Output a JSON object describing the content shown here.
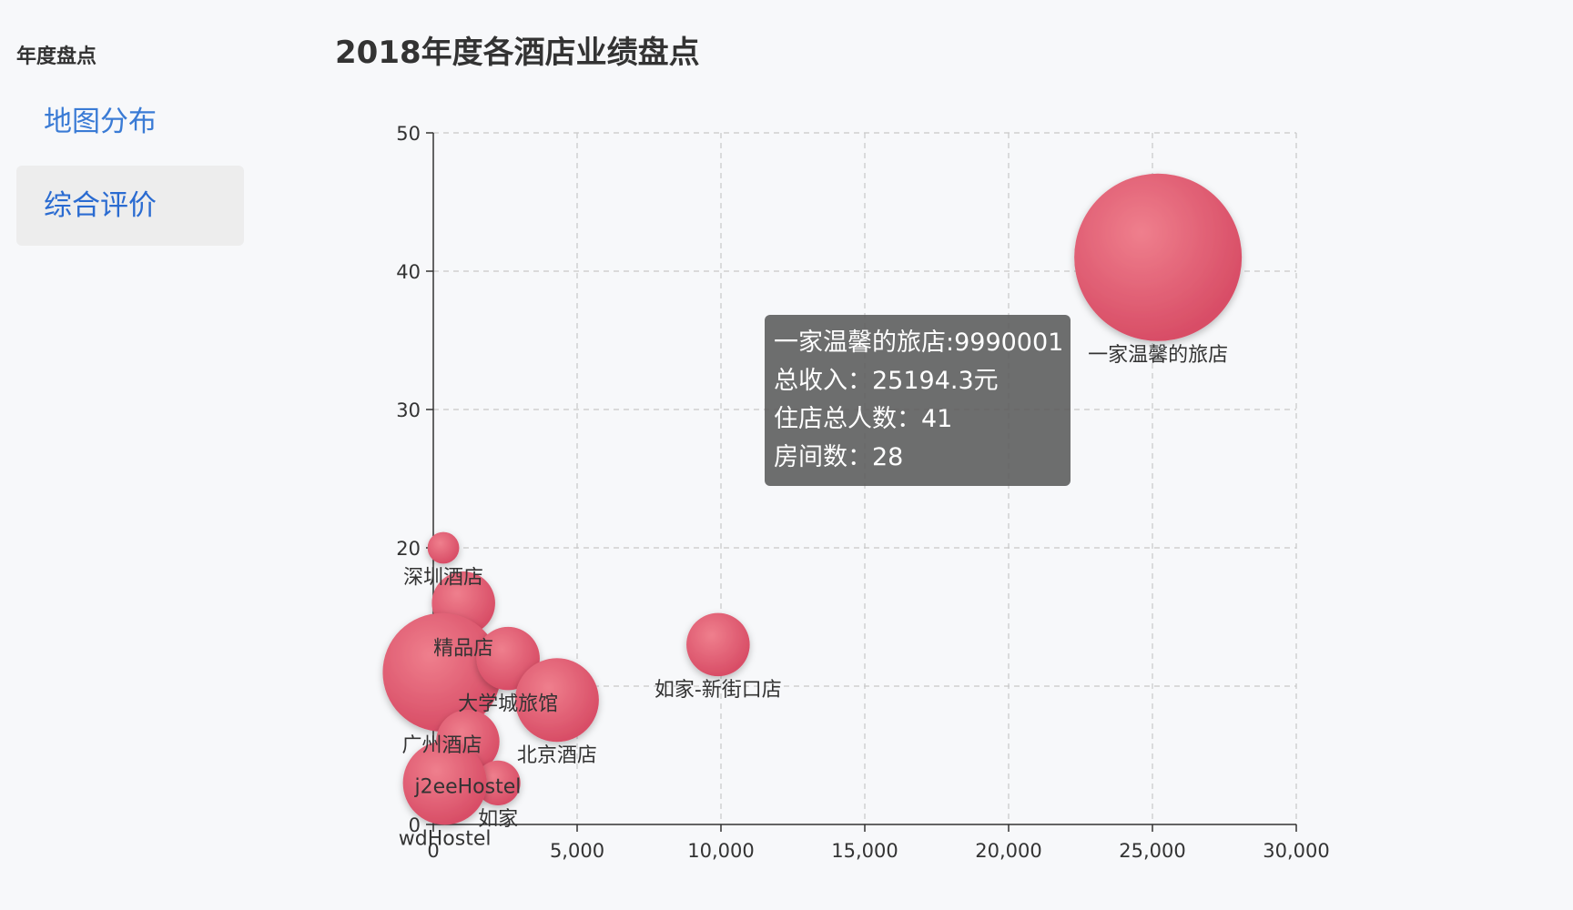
{
  "sidebar": {
    "heading": "年度盘点",
    "items": [
      {
        "label": "地图分布"
      },
      {
        "label": "综合评价"
      }
    ]
  },
  "colors": {
    "bubble": "#e45d72",
    "nav_text": "#3a7bd5",
    "nav_active_bg": "#ededed"
  },
  "chart_title": "2018年度各酒店业绩盘点",
  "tooltip": {
    "line1": "一家温馨的旅店:9990001",
    "line2": "总收入：25194.3元",
    "line3": "住店总人数：41",
    "line4": "房间数：28"
  },
  "chart_data": {
    "type": "scatter",
    "title": "2018年度各酒店业绩盘点",
    "xlabel": "",
    "ylabel": "",
    "xlim": [
      0,
      30000
    ],
    "ylim": [
      0,
      50
    ],
    "x_ticks": [
      "0",
      "5,000",
      "10,000",
      "15,000",
      "20,000",
      "25,000",
      "30,000"
    ],
    "y_ticks": [
      "0",
      "10",
      "20",
      "30",
      "40",
      "50"
    ],
    "grid": true,
    "points": [
      {
        "label": "一家温馨的旅店",
        "x": 25194.3,
        "y": 41,
        "size": 28
      },
      {
        "label": "如家-新街口店",
        "x": 9900,
        "y": 13,
        "size": 4
      },
      {
        "label": "深圳酒店",
        "x": 350,
        "y": 20,
        "size": 1
      },
      {
        "label": "精品店",
        "x": 1050,
        "y": 16,
        "size": 4
      },
      {
        "label": "广州酒店",
        "x": 300,
        "y": 11,
        "size": 14
      },
      {
        "label": "大学城旅馆",
        "x": 2600,
        "y": 12,
        "size": 4
      },
      {
        "label": "北京酒店",
        "x": 4300,
        "y": 9,
        "size": 7
      },
      {
        "label": "j2eeHostel",
        "x": 1200,
        "y": 6,
        "size": 4
      },
      {
        "label": "如家",
        "x": 2250,
        "y": 3,
        "size": 2
      },
      {
        "label": "wdHostel",
        "x": 400,
        "y": 3,
        "size": 7
      }
    ]
  }
}
